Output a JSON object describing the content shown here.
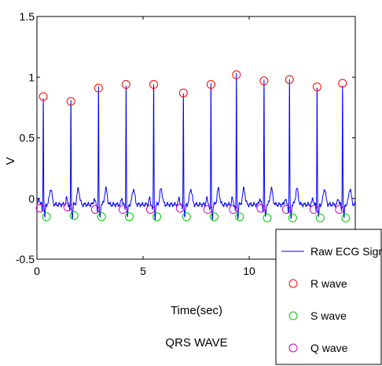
{
  "chart_data": {
    "type": "line",
    "title": "QRS WAVE",
    "xlabel": "Time(sec)",
    "ylabel": "V",
    "xlim": [
      0,
      15
    ],
    "ylim": [
      -0.5,
      1.5
    ],
    "xticks": [
      0,
      5,
      10
    ],
    "xtick_labels": [
      "0",
      "5",
      "10"
    ],
    "yticks": [
      -0.5,
      0,
      0.5,
      1,
      1.5
    ],
    "ytick_labels": [
      "-0.5",
      "0",
      "0.5",
      "1",
      "1.5"
    ],
    "legend_position": "bottom-right",
    "colors": {
      "signal": "#0000ff",
      "r_wave": "#ff0000",
      "s_wave": "#00cc00",
      "q_wave": "#cc00cc"
    },
    "series": [
      {
        "name": "Raw ECG Signal",
        "marker": "line",
        "description_free": true,
        "baseline": -0.05,
        "beat_times": [
          0.3,
          1.6,
          2.9,
          4.2,
          5.5,
          6.9,
          8.2,
          9.4,
          10.7,
          11.9,
          13.2,
          14.4
        ],
        "peak_values": [
          0.84,
          0.8,
          0.91,
          0.94,
          0.94,
          0.87,
          0.94,
          1.02,
          0.97,
          0.98,
          0.92,
          0.95
        ]
      },
      {
        "name": "R wave",
        "marker": "circle",
        "x": [
          0.3,
          1.6,
          2.9,
          4.2,
          5.5,
          6.9,
          8.2,
          9.4,
          10.7,
          11.9,
          13.2,
          14.4
        ],
        "y": [
          0.84,
          0.8,
          0.91,
          0.94,
          0.94,
          0.87,
          0.94,
          1.02,
          0.97,
          0.98,
          0.92,
          0.95
        ]
      },
      {
        "name": "S wave",
        "marker": "circle",
        "x": [
          0.45,
          1.75,
          3.05,
          4.35,
          5.65,
          7.05,
          8.35,
          9.55,
          10.85,
          12.05,
          13.35,
          14.55
        ],
        "y": [
          -0.15,
          -0.14,
          -0.15,
          -0.15,
          -0.15,
          -0.15,
          -0.15,
          -0.15,
          -0.16,
          -0.16,
          -0.16,
          -0.16
        ]
      },
      {
        "name": "Q wave",
        "marker": "circle",
        "x": [
          0.15,
          1.45,
          2.75,
          4.05,
          5.35,
          6.75,
          8.05,
          9.25,
          10.55,
          11.75,
          13.05,
          14.25
        ],
        "y": [
          -0.08,
          -0.07,
          -0.09,
          -0.09,
          -0.09,
          -0.08,
          -0.09,
          -0.09,
          -0.08,
          -0.09,
          -0.09,
          -0.09
        ]
      }
    ]
  }
}
